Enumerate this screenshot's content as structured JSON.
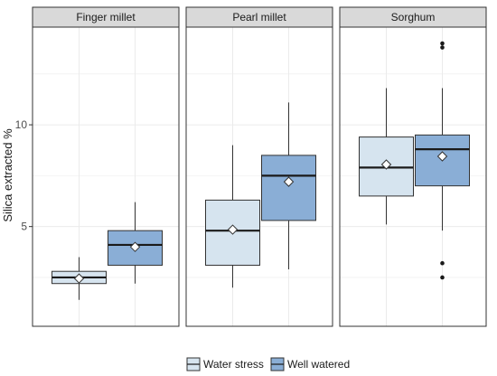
{
  "chart_data": {
    "type": "boxplot",
    "ylabel": "Silica extracted %",
    "xlabel": "",
    "ylim": [
      0.1,
      14.8
    ],
    "yticks": [
      5,
      10
    ],
    "grid": true,
    "legend_position": "bottom",
    "groups": [
      "Water stress",
      "Well watered"
    ],
    "colors": {
      "Water stress": "#d6e4ef",
      "Well watered": "#8aaed6"
    },
    "panels": [
      {
        "name": "Finger millet",
        "boxes": [
          {
            "group": "Water stress",
            "min": 1.4,
            "q1": 2.2,
            "median": 2.5,
            "q3": 2.8,
            "max": 3.5,
            "mean": 2.45,
            "outliers": []
          },
          {
            "group": "Well watered",
            "min": 2.2,
            "q1": 3.1,
            "median": 4.1,
            "q3": 4.8,
            "max": 6.2,
            "mean": 4.0,
            "outliers": []
          }
        ]
      },
      {
        "name": "Pearl millet",
        "boxes": [
          {
            "group": "Water stress",
            "min": 2.0,
            "q1": 3.1,
            "median": 4.8,
            "q3": 6.3,
            "max": 9.0,
            "mean": 4.85,
            "outliers": []
          },
          {
            "group": "Well watered",
            "min": 2.9,
            "q1": 5.3,
            "median": 7.5,
            "q3": 8.5,
            "max": 11.1,
            "mean": 7.2,
            "outliers": []
          }
        ]
      },
      {
        "name": "Sorghum",
        "boxes": [
          {
            "group": "Water stress",
            "min": 5.1,
            "q1": 6.5,
            "median": 7.9,
            "q3": 9.4,
            "max": 11.8,
            "mean": 8.05,
            "outliers": []
          },
          {
            "group": "Well watered",
            "min": 4.8,
            "q1": 7.0,
            "median": 8.8,
            "q3": 9.5,
            "max": 11.8,
            "mean": 8.45,
            "outliers": [
              3.2,
              2.5,
              13.8,
              14.0
            ]
          }
        ]
      }
    ]
  }
}
